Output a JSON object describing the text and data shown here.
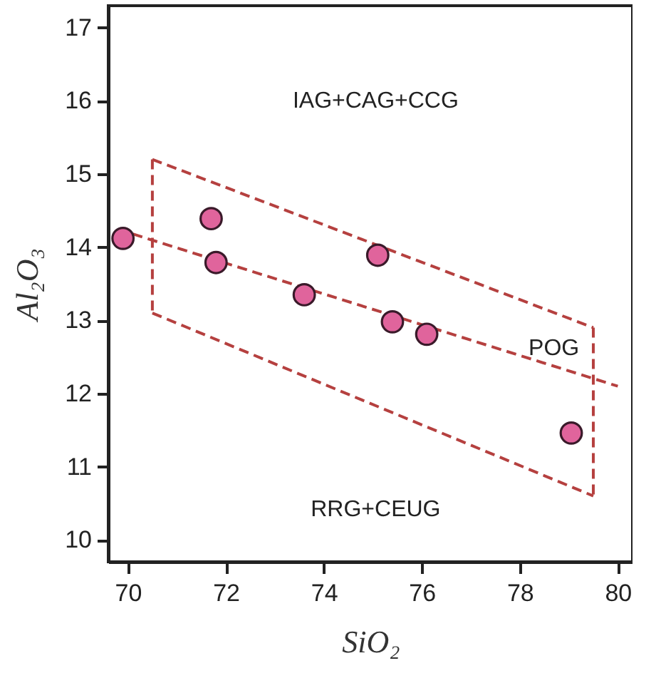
{
  "chart_data": {
    "type": "scatter",
    "xlabel": "SiO₂",
    "ylabel": "Al₂O₃",
    "xlim": [
      69.6,
      80.3
    ],
    "xticks": [
      70,
      72,
      74,
      76,
      78,
      80
    ],
    "ylim": [
      9.7,
      17.3
    ],
    "yticks": [
      10,
      11,
      12,
      13,
      14,
      15,
      16,
      17
    ],
    "grid": false,
    "series": [
      {
        "type": "line",
        "x": [
          70.5,
          79.5
        ],
        "values": [
          15.2,
          12.9
        ],
        "color": "#b5403f",
        "line_style": "dashed",
        "marker": "none"
      },
      {
        "type": "line",
        "x": [
          79.5,
          79.5
        ],
        "values": [
          12.9,
          10.6
        ],
        "color": "#b5403f",
        "line_style": "dashed",
        "marker": "none"
      },
      {
        "type": "line",
        "x": [
          70.5,
          79.5
        ],
        "values": [
          13.1,
          10.6
        ],
        "color": "#b5403f",
        "line_style": "dashed",
        "marker": "none"
      },
      {
        "type": "line",
        "x": [
          70.5,
          70.5
        ],
        "values": [
          15.2,
          13.1
        ],
        "color": "#b5403f",
        "line_style": "dashed",
        "marker": "none"
      },
      {
        "type": "line",
        "x": [
          70.1,
          80.0
        ],
        "values": [
          14.18,
          12.1
        ],
        "color": "#b5403f",
        "line_style": "dashed",
        "marker": "none"
      },
      {
        "x": [
          69.9,
          71.7,
          71.8,
          73.6,
          75.1,
          75.4,
          76.1,
          79.05
        ],
        "values": [
          14.12,
          14.39,
          13.79,
          13.35,
          13.89,
          12.98,
          12.81,
          11.46
        ],
        "color": "#e0649c",
        "marker": "circle"
      }
    ],
    "annotations": [
      "IAG+CAG+CCG",
      "POG",
      "RRG+CEUG"
    ]
  }
}
